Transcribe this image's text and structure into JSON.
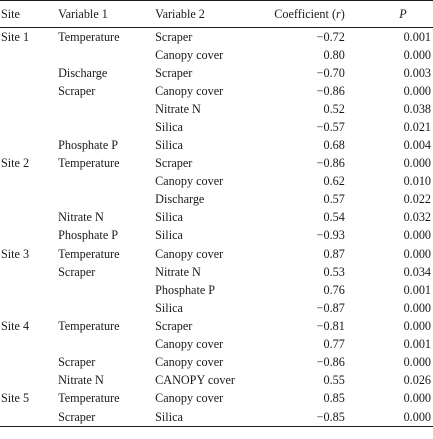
{
  "columns": {
    "site": "Site",
    "variable1": "Variable 1",
    "variable2": "Variable 2",
    "coefficient": "Coefficient (r)",
    "p": "P"
  },
  "rows": [
    {
      "site": "Site 1",
      "var1": "Temperature",
      "var2": "Scraper",
      "r": "−0.72",
      "p": "0.001"
    },
    {
      "site": "",
      "var1": "",
      "var2": "Canopy cover",
      "r": "0.80",
      "p": "0.000"
    },
    {
      "site": "",
      "var1": "Discharge",
      "var2": "Scraper",
      "r": "−0.70",
      "p": "0.003"
    },
    {
      "site": "",
      "var1": "Scraper",
      "var2": "Canopy cover",
      "r": "−0.86",
      "p": "0.000"
    },
    {
      "site": "",
      "var1": "",
      "var2": "Nitrate N",
      "r": "0.52",
      "p": "0.038"
    },
    {
      "site": "",
      "var1": "",
      "var2": "Silica",
      "r": "−0.57",
      "p": "0.021"
    },
    {
      "site": "",
      "var1": "Phosphate P",
      "var2": "Silica",
      "r": "0.68",
      "p": "0.004"
    },
    {
      "site": "Site 2",
      "var1": "Temperature",
      "var2": "Scraper",
      "r": "−0.86",
      "p": "0.000"
    },
    {
      "site": "",
      "var1": "",
      "var2": "Canopy cover",
      "r": "0.62",
      "p": "0.010"
    },
    {
      "site": "",
      "var1": "",
      "var2": "Discharge",
      "r": "0.57",
      "p": "0.022"
    },
    {
      "site": "",
      "var1": "Nitrate N",
      "var2": "Silica",
      "r": "0.54",
      "p": "0.032"
    },
    {
      "site": "",
      "var1": "Phosphate P",
      "var2": "Silica",
      "r": "−0.93",
      "p": "0.000"
    },
    {
      "site": "Site 3",
      "var1": "Temperature",
      "var2": "Canopy cover",
      "r": "0.87",
      "p": "0.000"
    },
    {
      "site": "",
      "var1": "Scraper",
      "var2": "Nitrate N",
      "r": "0.53",
      "p": "0.034"
    },
    {
      "site": "",
      "var1": "",
      "var2": "Phosphate P",
      "r": "0.76",
      "p": "0.001"
    },
    {
      "site": "",
      "var1": "",
      "var2": "Silica",
      "r": "−0.87",
      "p": "0.000"
    },
    {
      "site": "Site 4",
      "var1": "Temperature",
      "var2": "Scraper",
      "r": "−0.81",
      "p": "0.000"
    },
    {
      "site": "",
      "var1": "",
      "var2": "Canopy cover",
      "r": "0.77",
      "p": "0.001"
    },
    {
      "site": "",
      "var1": "Scraper",
      "var2": "Canopy cover",
      "r": "−0.86",
      "p": "0.000"
    },
    {
      "site": "",
      "var1": "Nitrate N",
      "var2": "CANOPY cover",
      "r": "0.55",
      "p": "0.026"
    },
    {
      "site": "Site 5",
      "var1": "Temperature",
      "var2": "Canopy cover",
      "r": "0.85",
      "p": "0.000"
    },
    {
      "site": "",
      "var1": "Scraper",
      "var2": "Silica",
      "r": "−0.85",
      "p": "0.000"
    }
  ]
}
